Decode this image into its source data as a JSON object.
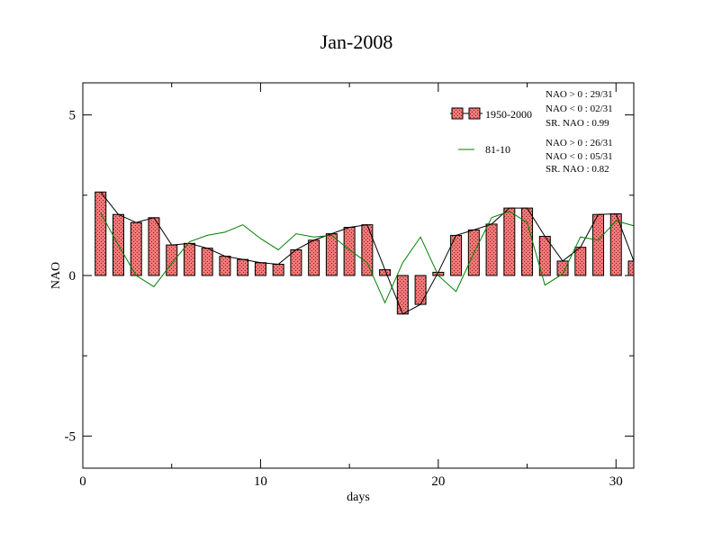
{
  "chart_data": {
    "type": "bar",
    "title": "Jan-2008",
    "xlabel": "days",
    "ylabel": "NAO",
    "xlim": [
      0,
      31
    ],
    "ylim": [
      -6,
      6
    ],
    "x_ticks": [
      "0",
      "10",
      "20",
      "30"
    ],
    "y_ticks": [
      "5",
      "0",
      "-5"
    ],
    "x_tick_values": [
      0,
      10,
      20,
      30
    ],
    "y_tick_values": [
      5,
      0,
      -5
    ],
    "grid": false,
    "legend_position": "top-right",
    "colors": {
      "bar_fill": "#f07878",
      "bar_hatch": "#8a2020",
      "outline": "#000000",
      "line_81_10": "#008000"
    },
    "series": [
      {
        "name": "1950-2000",
        "kind": "bar-with-line",
        "x": [
          1,
          2,
          3,
          4,
          5,
          6,
          7,
          8,
          9,
          10,
          11,
          12,
          13,
          14,
          15,
          16,
          17,
          18,
          19,
          20,
          21,
          22,
          23,
          24,
          25,
          26,
          27,
          28,
          29,
          30,
          31
        ],
        "values": [
          2.6,
          1.9,
          1.65,
          1.8,
          0.95,
          1.0,
          0.85,
          0.6,
          0.5,
          0.4,
          0.35,
          0.8,
          1.1,
          1.3,
          1.5,
          1.58,
          0.18,
          -1.2,
          -0.9,
          0.1,
          1.25,
          1.42,
          1.6,
          2.1,
          2.1,
          1.22,
          0.45,
          0.88,
          1.9,
          1.92,
          0.45
        ]
      },
      {
        "name": "81-10",
        "kind": "line",
        "x": [
          1,
          2,
          3,
          4,
          5,
          6,
          7,
          8,
          9,
          10,
          11,
          12,
          13,
          14,
          15,
          16,
          17,
          18,
          19,
          20,
          21,
          22,
          23,
          24,
          25,
          26,
          27,
          28,
          29,
          30,
          31
        ],
        "values": [
          1.95,
          0.95,
          0.0,
          -0.35,
          0.38,
          1.05,
          1.25,
          1.35,
          1.58,
          1.15,
          0.8,
          1.3,
          1.2,
          1.25,
          0.8,
          0.4,
          -0.85,
          0.4,
          1.2,
          0.0,
          -0.5,
          0.7,
          1.8,
          2.0,
          1.65,
          -0.3,
          0.05,
          1.2,
          1.1,
          1.7,
          1.55
        ]
      }
    ],
    "stats": [
      {
        "series": "1950-2000",
        "lines": [
          "NAO > 0 : 29/31",
          "NAO < 0 : 02/31",
          "SR. NAO :  0.99"
        ]
      },
      {
        "series": "81-10",
        "lines": [
          "NAO > 0 : 26/31",
          "NAO < 0 : 05/31",
          "SR. NAO :  0.82"
        ]
      }
    ]
  }
}
